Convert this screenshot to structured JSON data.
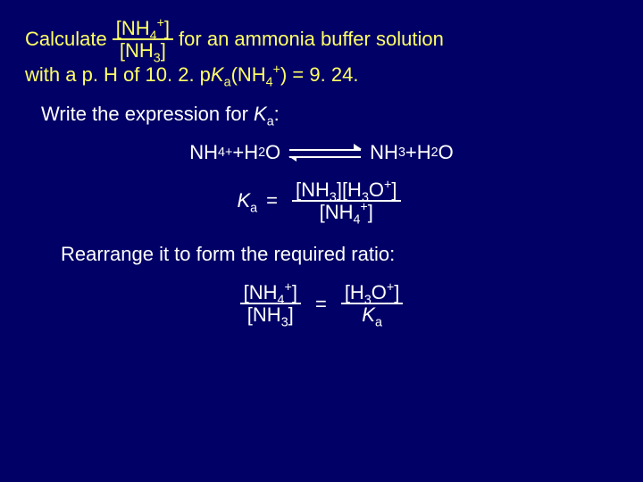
{
  "colors": {
    "background": "#000066",
    "text_primary": "#ffffff",
    "text_accent": "#ffff66"
  },
  "typography": {
    "font_family": "Comic Sans MS",
    "base_fontsize_pt": 17
  },
  "problem": {
    "lead_in": "Calculate",
    "ratio_num": "[NH",
    "ratio_num_sub": "4",
    "ratio_num_sup": "+",
    "ratio_num_close": "]",
    "ratio_den": "[NH",
    "ratio_den_sub": "3",
    "ratio_den_close": "]",
    "tail_1": "for an ammonia buffer solution",
    "tail_2a": "with a p. H of ",
    "ph_value": "10. 2. ",
    "tail_2b": "p",
    "Ka_label": "K",
    "Ka_sub": "a",
    "tail_2c": "(NH",
    "tail_2c_sub": "4",
    "tail_2c_sup": "+",
    "tail_2d": ") = ",
    "pKa_value": "9. 24."
  },
  "step1": {
    "text_a": "Write the expression for ",
    "K": "K",
    "K_sub": "a",
    "text_b": ":"
  },
  "reaction": {
    "lhs_1": "NH",
    "lhs_1_sub": "4",
    "lhs_1_sup": "+",
    "plus": "  +  ",
    "lhs_2": "H",
    "lhs_2_sub": "2",
    "lhs_2_tail": "O",
    "rhs_1": "NH",
    "rhs_1_sub": "3",
    "rhs_2": "H",
    "rhs_2_sub": "2",
    "rhs_2_tail": "O"
  },
  "Ka_expr": {
    "lhs_K": "K",
    "lhs_sub": "a",
    "eq": "=",
    "num_a": "[NH",
    "num_a_sub": "3",
    "num_a_close": "][H",
    "num_b_sub": "3",
    "num_b_tail": "O",
    "num_b_sup": "+",
    "num_close": "]",
    "den_a": "[NH",
    "den_a_sub": "4",
    "den_a_sup": "+",
    "den_close": "]"
  },
  "step2": {
    "text": "Rearrange it to form the required ratio:"
  },
  "rearranged": {
    "lhs_num": "[NH",
    "lhs_num_sub": "4",
    "lhs_num_sup": "+",
    "lhs_num_close": "]",
    "lhs_den": "[NH",
    "lhs_den_sub": "3",
    "lhs_den_close": "]",
    "eq": "=",
    "rhs_num": "[H",
    "rhs_num_sub": "3",
    "rhs_num_tail": "O",
    "rhs_num_sup": "+",
    "rhs_num_close": "]",
    "rhs_den_K": "K",
    "rhs_den_sub": "a"
  }
}
